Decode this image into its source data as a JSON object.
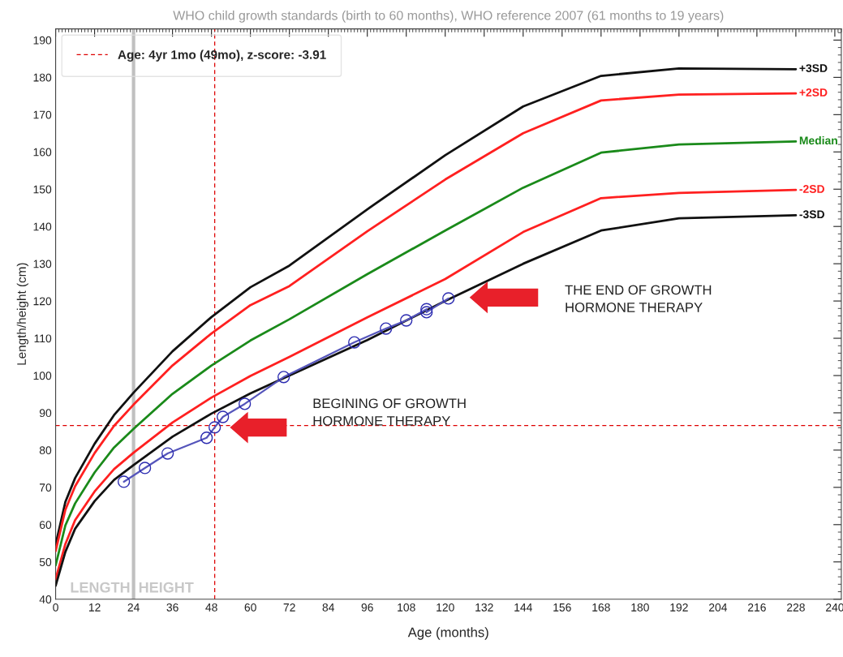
{
  "chart_data": {
    "type": "line",
    "title": "WHO child growth standards (birth to 60 months), WHO reference 2007 (61 months to 19 years)",
    "xlabel": "Age (months)",
    "ylabel": "Length/height (cm)",
    "xlim": [
      0,
      242
    ],
    "ylim": [
      40,
      193
    ],
    "xticks": [
      0,
      12,
      24,
      36,
      48,
      60,
      72,
      84,
      96,
      108,
      120,
      132,
      144,
      156,
      168,
      180,
      192,
      204,
      216,
      228,
      240
    ],
    "yticks": [
      40,
      50,
      60,
      70,
      80,
      90,
      100,
      110,
      120,
      130,
      140,
      150,
      160,
      170,
      180,
      190
    ],
    "grid": false,
    "legend": "top left",
    "series": [
      {
        "name": "+3SD",
        "color": "#111111",
        "x": [
          0,
          3,
          6,
          12,
          18,
          24,
          36,
          48,
          60,
          72,
          96,
          120,
          144,
          168,
          192,
          228
        ],
        "values": [
          54.7,
          66.1,
          72.5,
          81.7,
          89.4,
          95.4,
          106.5,
          115.7,
          123.7,
          129.5,
          144.6,
          159.1,
          172.2,
          180.4,
          182.4,
          182.2
        ]
      },
      {
        "name": "+2SD",
        "color": "#ff2020",
        "x": [
          0,
          3,
          6,
          12,
          18,
          24,
          36,
          48,
          60,
          72,
          96,
          120,
          144,
          168,
          192,
          228
        ],
        "values": [
          52.9,
          64.0,
          70.3,
          79.2,
          86.5,
          92.2,
          102.7,
          111.3,
          118.9,
          124.0,
          138.7,
          152.6,
          165.0,
          173.8,
          175.4,
          175.7
        ]
      },
      {
        "name": "Median",
        "color": "#1a8a1a",
        "x": [
          0,
          3,
          6,
          12,
          18,
          24,
          36,
          48,
          60,
          72,
          96,
          120,
          144,
          168,
          192,
          228
        ],
        "values": [
          49.1,
          59.8,
          65.7,
          74.0,
          80.7,
          85.7,
          95.1,
          102.7,
          109.4,
          115.1,
          127.2,
          138.9,
          150.4,
          159.8,
          162.0,
          162.8
        ]
      },
      {
        "name": "-2SD",
        "color": "#ff2020",
        "x": [
          0,
          3,
          6,
          12,
          18,
          24,
          36,
          48,
          60,
          72,
          96,
          120,
          144,
          168,
          192,
          228
        ],
        "values": [
          45.4,
          54.8,
          61.2,
          68.9,
          74.9,
          79.3,
          87.4,
          94.1,
          99.9,
          105.0,
          115.6,
          125.9,
          138.5,
          147.6,
          149.0,
          149.8
        ]
      },
      {
        "name": "-3SD",
        "color": "#111111",
        "x": [
          0,
          3,
          6,
          12,
          18,
          24,
          36,
          48,
          60,
          72,
          96,
          120,
          144,
          168,
          192,
          228
        ],
        "values": [
          43.6,
          52.7,
          58.9,
          66.3,
          72.0,
          76.0,
          83.6,
          89.8,
          95.2,
          100.0,
          109.5,
          120.0,
          130.0,
          138.9,
          142.2,
          143.0
        ]
      },
      {
        "color": "#5555bb",
        "marker": "circle",
        "x": [
          21,
          27.5,
          34.5,
          46.5,
          49,
          51.5,
          58.25,
          70.25,
          92,
          101.75,
          108,
          114.25,
          114.25,
          121
        ],
        "values": [
          71.5,
          75.2,
          79.1,
          83.3,
          86.1,
          88.9,
          92.4,
          99.6,
          108.9,
          112.6,
          114.8,
          117.8,
          117.0,
          120.7
        ]
      }
    ],
    "ref_lines": [
      {
        "axis": "x",
        "value": 49,
        "label": "Age: 4yr 1mo (49mo), z-score: -3.91",
        "color": "#dd0000",
        "line_style": "dashed"
      },
      {
        "axis": "y",
        "value": 86.6,
        "color": "#dd0000",
        "line_style": "dashed"
      },
      {
        "axis": "x",
        "value": 24,
        "color": "#c0c0c0",
        "line_style": "solid"
      }
    ],
    "annotations": [
      "BEGINING OF GROWTH\nHORMONE THERAPY",
      "THE END OF GROWTH\nHORMONE THERAPY",
      "LENGTH",
      "HEIGHT"
    ]
  }
}
